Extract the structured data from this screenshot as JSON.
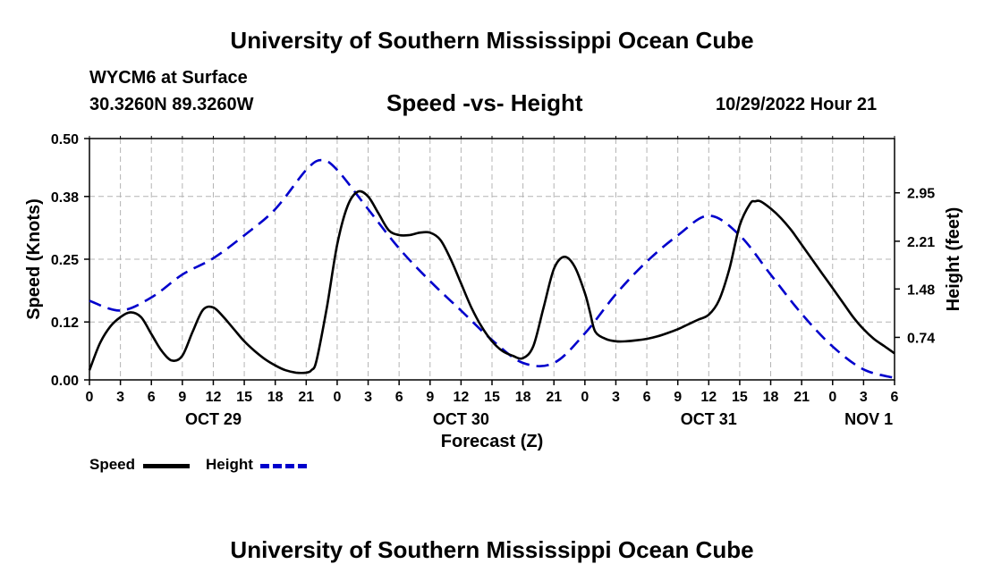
{
  "header": {
    "title": "University of Southern Mississippi Ocean Cube",
    "station": "WYCM6 at Surface",
    "coords": "30.3260N  89.3260W",
    "subtitle": "Speed -vs- Height",
    "datetime": "10/29/2022 Hour 21"
  },
  "footer": {
    "title": "University of Southern Mississippi Ocean Cube"
  },
  "legend": {
    "speed_label": "Speed",
    "height_label": "Height"
  },
  "colors": {
    "speed": "#000000",
    "height": "#0000cc",
    "grid": "#b4b4b4"
  },
  "chart_data": {
    "type": "line",
    "title": "Speed -vs- Height",
    "xlabel": "Forecast (Z)",
    "ylabel": "Speed (Knots)",
    "y2label": "Height (feet)",
    "xlim": [
      0,
      78
    ],
    "ylim": [
      0,
      0.5
    ],
    "y2lim": [
      0.09,
      3.78
    ],
    "x_ticks": [
      0,
      3,
      6,
      9,
      12,
      15,
      18,
      21,
      24,
      27,
      30,
      33,
      36,
      39,
      42,
      45,
      48,
      51,
      54,
      57,
      60,
      63,
      66,
      69,
      72,
      75,
      78
    ],
    "x_tick_labels": [
      "0",
      "3",
      "6",
      "9",
      "12",
      "15",
      "18",
      "21",
      "0",
      "3",
      "6",
      "9",
      "12",
      "15",
      "18",
      "21",
      "0",
      "3",
      "6",
      "9",
      "12",
      "15",
      "18",
      "21",
      "0",
      "3",
      "6"
    ],
    "date_labels": [
      {
        "x": 12,
        "label": "OCT 29"
      },
      {
        "x": 36,
        "label": "OCT 30"
      },
      {
        "x": 60,
        "label": "OCT 31"
      },
      {
        "x": 75.5,
        "label": "NOV 1"
      }
    ],
    "y_ticks": [
      0.0,
      0.12,
      0.25,
      0.38,
      0.5
    ],
    "y_tick_labels": [
      "0.00",
      "0.12",
      "0.25",
      "0.38",
      "0.50"
    ],
    "y2_ticks": [
      0.74,
      1.48,
      2.21,
      2.95
    ],
    "y2_tick_labels": [
      "0.74",
      "1.48",
      "2.21",
      "2.95"
    ],
    "series": [
      {
        "name": "Speed",
        "axis": "left",
        "style": "solid",
        "x": [
          0,
          1,
          2,
          3,
          4,
          5,
          6,
          7,
          8,
          9,
          10,
          11,
          12,
          13,
          14,
          15,
          16,
          17,
          18,
          19,
          20,
          21,
          21.5,
          22,
          23,
          24,
          25,
          26,
          27,
          28,
          29,
          30,
          31,
          32,
          33,
          34,
          35,
          36,
          37,
          38,
          39,
          40,
          41,
          42,
          43,
          44,
          45,
          46,
          47,
          48,
          48.5,
          49,
          50,
          51,
          52,
          53,
          54,
          55,
          56,
          57,
          58,
          59,
          60,
          61,
          62,
          63,
          64,
          64.5,
          65,
          66,
          67,
          68,
          69,
          70,
          71,
          72,
          73,
          74,
          75,
          76,
          77,
          78
        ],
        "values": [
          0.02,
          0.075,
          0.11,
          0.13,
          0.14,
          0.13,
          0.095,
          0.06,
          0.04,
          0.05,
          0.1,
          0.145,
          0.15,
          0.13,
          0.105,
          0.08,
          0.06,
          0.043,
          0.03,
          0.02,
          0.015,
          0.015,
          0.02,
          0.04,
          0.15,
          0.28,
          0.36,
          0.39,
          0.38,
          0.345,
          0.31,
          0.3,
          0.3,
          0.305,
          0.305,
          0.29,
          0.25,
          0.2,
          0.15,
          0.11,
          0.08,
          0.06,
          0.05,
          0.045,
          0.07,
          0.15,
          0.23,
          0.255,
          0.235,
          0.18,
          0.14,
          0.1,
          0.085,
          0.08,
          0.08,
          0.082,
          0.085,
          0.09,
          0.097,
          0.105,
          0.115,
          0.125,
          0.135,
          0.165,
          0.23,
          0.32,
          0.365,
          0.37,
          0.37,
          0.355,
          0.335,
          0.31,
          0.28,
          0.25,
          0.22,
          0.19,
          0.16,
          0.13,
          0.105,
          0.085,
          0.07,
          0.055
        ]
      },
      {
        "name": "Height",
        "axis": "right",
        "style": "dashed",
        "x": [
          0,
          3,
          6,
          9,
          12,
          15,
          18,
          21,
          22.5,
          24,
          27,
          30,
          33,
          36,
          39,
          42,
          45,
          48,
          51,
          54,
          57,
          60,
          63,
          66,
          69,
          72,
          75,
          78
        ],
        "values": [
          1.3,
          1.15,
          1.35,
          1.7,
          1.95,
          2.3,
          2.7,
          3.3,
          3.45,
          3.3,
          2.7,
          2.1,
          1.6,
          1.15,
          0.7,
          0.35,
          0.35,
          0.8,
          1.4,
          1.9,
          2.3,
          2.6,
          2.3,
          1.7,
          1.1,
          0.6,
          0.25,
          0.12
        ]
      }
    ]
  }
}
